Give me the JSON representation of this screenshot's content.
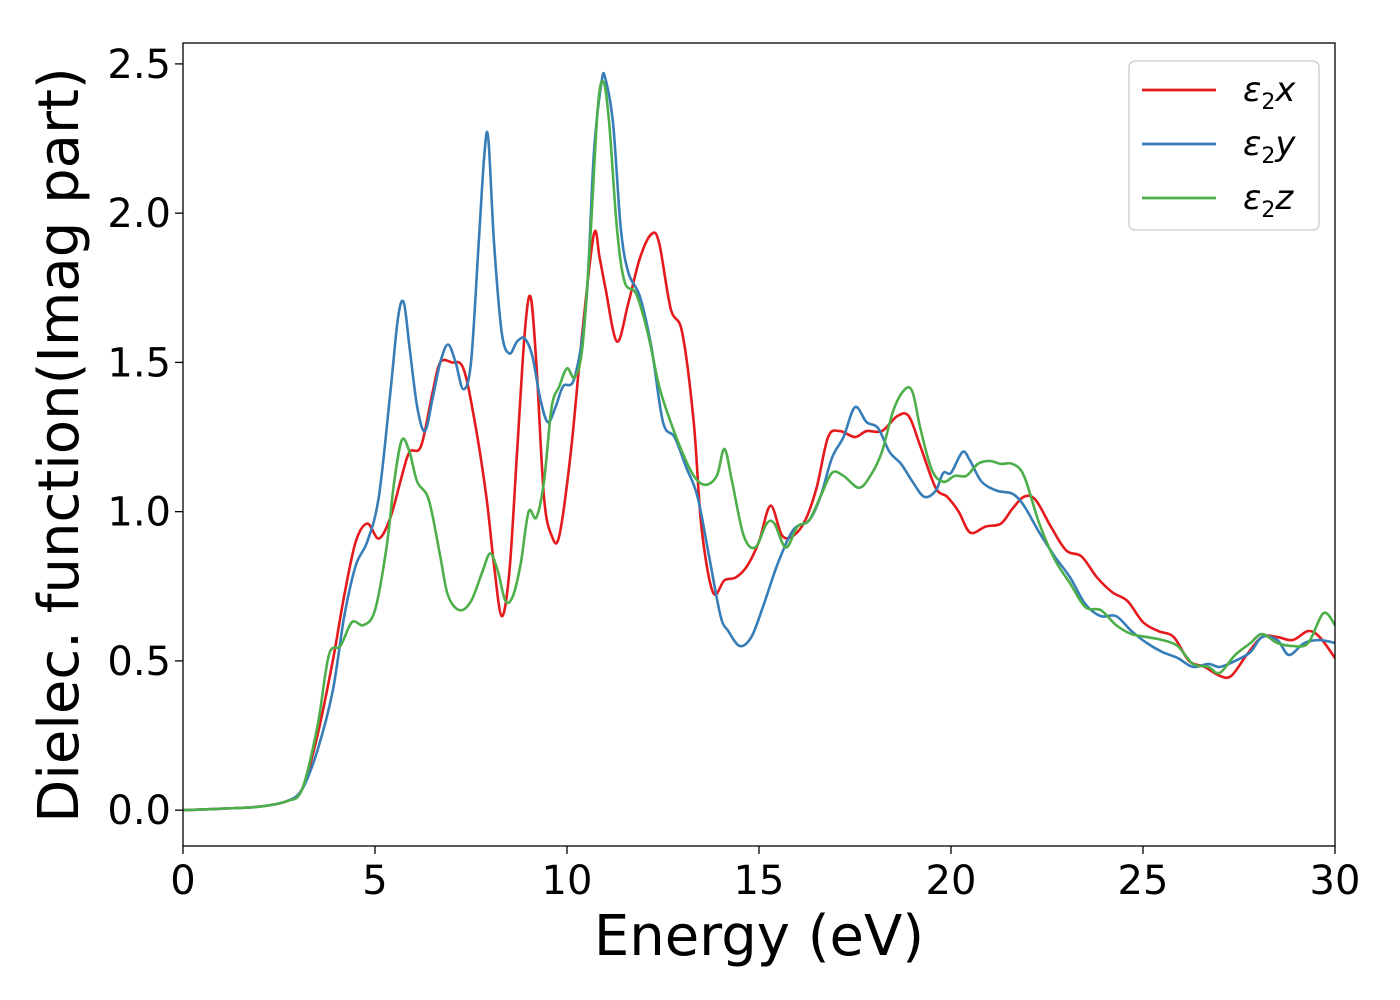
{
  "chart_data": {
    "type": "line",
    "title": "",
    "xlabel": "Energy (eV)",
    "ylabel": "Dielec. function(Imag part)",
    "xlim": [
      0,
      30
    ],
    "ylim": [
      -0.12,
      2.57
    ],
    "xticks": [
      0,
      5,
      10,
      15,
      20,
      25,
      30
    ],
    "yticks": [
      0.0,
      0.5,
      1.0,
      1.5,
      2.0,
      2.5
    ],
    "xtick_labels": [
      "0",
      "5",
      "10",
      "15",
      "20",
      "25",
      "30"
    ],
    "ytick_labels": [
      "0.0",
      "0.5",
      "1.0",
      "1.5",
      "2.0",
      "2.5"
    ],
    "grid": false,
    "legend_position": "top-right",
    "series": [
      {
        "name": "ε2x",
        "legend": {
          "base": "ε",
          "sub": "2",
          "tail": "x"
        },
        "color": "#e41a1c",
        "points": [
          [
            0,
            0
          ],
          [
            1,
            0.005
          ],
          [
            2,
            0.012
          ],
          [
            2.7,
            0.03
          ],
          [
            3.1,
            0.07
          ],
          [
            3.5,
            0.25
          ],
          [
            3.9,
            0.5
          ],
          [
            4.2,
            0.72
          ],
          [
            4.5,
            0.9
          ],
          [
            4.8,
            0.96
          ],
          [
            5.1,
            0.91
          ],
          [
            5.4,
            0.98
          ],
          [
            5.7,
            1.12
          ],
          [
            5.9,
            1.2
          ],
          [
            6.2,
            1.22
          ],
          [
            6.5,
            1.4
          ],
          [
            6.7,
            1.5
          ],
          [
            7.0,
            1.5
          ],
          [
            7.3,
            1.48
          ],
          [
            7.6,
            1.3
          ],
          [
            7.9,
            1.05
          ],
          [
            8.1,
            0.82
          ],
          [
            8.3,
            0.65
          ],
          [
            8.5,
            0.8
          ],
          [
            8.7,
            1.2
          ],
          [
            8.9,
            1.6
          ],
          [
            9.05,
            1.72
          ],
          [
            9.2,
            1.5
          ],
          [
            9.4,
            1.05
          ],
          [
            9.6,
            0.92
          ],
          [
            9.8,
            0.92
          ],
          [
            10.1,
            1.2
          ],
          [
            10.4,
            1.6
          ],
          [
            10.7,
            1.93
          ],
          [
            10.85,
            1.85
          ],
          [
            11.0,
            1.75
          ],
          [
            11.3,
            1.57
          ],
          [
            11.6,
            1.7
          ],
          [
            11.9,
            1.85
          ],
          [
            12.2,
            1.93
          ],
          [
            12.4,
            1.9
          ],
          [
            12.7,
            1.68
          ],
          [
            13.0,
            1.6
          ],
          [
            13.3,
            1.3
          ],
          [
            13.5,
            0.95
          ],
          [
            13.8,
            0.73
          ],
          [
            14.1,
            0.77
          ],
          [
            14.4,
            0.78
          ],
          [
            14.7,
            0.82
          ],
          [
            15.0,
            0.9
          ],
          [
            15.3,
            1.02
          ],
          [
            15.6,
            0.92
          ],
          [
            15.9,
            0.92
          ],
          [
            16.2,
            0.97
          ],
          [
            16.5,
            1.08
          ],
          [
            16.8,
            1.25
          ],
          [
            17.1,
            1.27
          ],
          [
            17.5,
            1.25
          ],
          [
            17.8,
            1.27
          ],
          [
            18.2,
            1.27
          ],
          [
            18.6,
            1.32
          ],
          [
            18.9,
            1.32
          ],
          [
            19.2,
            1.22
          ],
          [
            19.6,
            1.08
          ],
          [
            19.9,
            1.05
          ],
          [
            20.2,
            1.0
          ],
          [
            20.5,
            0.93
          ],
          [
            20.9,
            0.95
          ],
          [
            21.3,
            0.96
          ],
          [
            21.6,
            1.01
          ],
          [
            21.9,
            1.05
          ],
          [
            22.2,
            1.04
          ],
          [
            22.6,
            0.95
          ],
          [
            23.0,
            0.87
          ],
          [
            23.4,
            0.85
          ],
          [
            23.8,
            0.78
          ],
          [
            24.2,
            0.73
          ],
          [
            24.6,
            0.7
          ],
          [
            25.0,
            0.63
          ],
          [
            25.4,
            0.6
          ],
          [
            25.8,
            0.58
          ],
          [
            26.2,
            0.5
          ],
          [
            26.6,
            0.48
          ],
          [
            27.0,
            0.45
          ],
          [
            27.3,
            0.45
          ],
          [
            27.7,
            0.52
          ],
          [
            28.1,
            0.58
          ],
          [
            28.5,
            0.58
          ],
          [
            28.9,
            0.57
          ],
          [
            29.3,
            0.6
          ],
          [
            29.6,
            0.58
          ],
          [
            30.0,
            0.51
          ]
        ]
      },
      {
        "name": "ε2y",
        "legend": {
          "base": "ε",
          "sub": "2",
          "tail": "y"
        },
        "color": "#377eb8",
        "points": [
          [
            0,
            0
          ],
          [
            1,
            0.005
          ],
          [
            2,
            0.012
          ],
          [
            2.7,
            0.03
          ],
          [
            3.1,
            0.07
          ],
          [
            3.5,
            0.2
          ],
          [
            3.9,
            0.4
          ],
          [
            4.2,
            0.65
          ],
          [
            4.5,
            0.82
          ],
          [
            4.8,
            0.9
          ],
          [
            5.1,
            1.05
          ],
          [
            5.4,
            1.4
          ],
          [
            5.6,
            1.65
          ],
          [
            5.75,
            1.7
          ],
          [
            5.9,
            1.55
          ],
          [
            6.1,
            1.35
          ],
          [
            6.3,
            1.27
          ],
          [
            6.5,
            1.38
          ],
          [
            6.7,
            1.5
          ],
          [
            6.9,
            1.56
          ],
          [
            7.1,
            1.5
          ],
          [
            7.3,
            1.41
          ],
          [
            7.5,
            1.5
          ],
          [
            7.7,
            1.9
          ],
          [
            7.85,
            2.2
          ],
          [
            7.95,
            2.25
          ],
          [
            8.1,
            1.9
          ],
          [
            8.3,
            1.6
          ],
          [
            8.5,
            1.53
          ],
          [
            8.7,
            1.57
          ],
          [
            8.9,
            1.58
          ],
          [
            9.1,
            1.52
          ],
          [
            9.3,
            1.38
          ],
          [
            9.5,
            1.3
          ],
          [
            9.7,
            1.35
          ],
          [
            9.9,
            1.42
          ],
          [
            10.2,
            1.45
          ],
          [
            10.5,
            1.7
          ],
          [
            10.7,
            2.2
          ],
          [
            10.9,
            2.44
          ],
          [
            11.0,
            2.45
          ],
          [
            11.2,
            2.3
          ],
          [
            11.4,
            1.95
          ],
          [
            11.6,
            1.8
          ],
          [
            11.9,
            1.72
          ],
          [
            12.2,
            1.55
          ],
          [
            12.5,
            1.3
          ],
          [
            12.8,
            1.25
          ],
          [
            13.1,
            1.15
          ],
          [
            13.4,
            1.05
          ],
          [
            13.7,
            0.85
          ],
          [
            14.0,
            0.65
          ],
          [
            14.2,
            0.6
          ],
          [
            14.5,
            0.55
          ],
          [
            14.8,
            0.58
          ],
          [
            15.1,
            0.68
          ],
          [
            15.5,
            0.83
          ],
          [
            15.9,
            0.94
          ],
          [
            16.3,
            0.97
          ],
          [
            16.6,
            1.05
          ],
          [
            16.9,
            1.18
          ],
          [
            17.2,
            1.25
          ],
          [
            17.5,
            1.35
          ],
          [
            17.8,
            1.3
          ],
          [
            18.1,
            1.28
          ],
          [
            18.4,
            1.2
          ],
          [
            18.7,
            1.16
          ],
          [
            19.0,
            1.1
          ],
          [
            19.3,
            1.05
          ],
          [
            19.6,
            1.07
          ],
          [
            19.8,
            1.13
          ],
          [
            20.0,
            1.13
          ],
          [
            20.3,
            1.2
          ],
          [
            20.5,
            1.17
          ],
          [
            20.8,
            1.1
          ],
          [
            21.2,
            1.07
          ],
          [
            21.6,
            1.06
          ],
          [
            21.9,
            1.02
          ],
          [
            22.3,
            0.93
          ],
          [
            22.7,
            0.85
          ],
          [
            23.1,
            0.78
          ],
          [
            23.5,
            0.69
          ],
          [
            23.9,
            0.65
          ],
          [
            24.3,
            0.65
          ],
          [
            24.7,
            0.6
          ],
          [
            25.1,
            0.56
          ],
          [
            25.5,
            0.53
          ],
          [
            25.9,
            0.51
          ],
          [
            26.3,
            0.48
          ],
          [
            26.7,
            0.49
          ],
          [
            27.0,
            0.48
          ],
          [
            27.4,
            0.5
          ],
          [
            27.8,
            0.53
          ],
          [
            28.1,
            0.58
          ],
          [
            28.5,
            0.57
          ],
          [
            28.8,
            0.52
          ],
          [
            29.2,
            0.56
          ],
          [
            29.6,
            0.57
          ],
          [
            30.0,
            0.56
          ]
        ]
      },
      {
        "name": "ε2z",
        "legend": {
          "base": "ε",
          "sub": "2",
          "tail": "z"
        },
        "color": "#4daf4a",
        "points": [
          [
            0,
            0
          ],
          [
            1,
            0.005
          ],
          [
            2,
            0.012
          ],
          [
            2.7,
            0.03
          ],
          [
            3.1,
            0.07
          ],
          [
            3.5,
            0.28
          ],
          [
            3.8,
            0.52
          ],
          [
            4.1,
            0.55
          ],
          [
            4.4,
            0.63
          ],
          [
            4.7,
            0.62
          ],
          [
            5.0,
            0.67
          ],
          [
            5.3,
            0.88
          ],
          [
            5.5,
            1.1
          ],
          [
            5.7,
            1.24
          ],
          [
            5.9,
            1.2
          ],
          [
            6.1,
            1.1
          ],
          [
            6.4,
            1.04
          ],
          [
            6.7,
            0.85
          ],
          [
            6.9,
            0.72
          ],
          [
            7.2,
            0.67
          ],
          [
            7.5,
            0.7
          ],
          [
            7.8,
            0.8
          ],
          [
            8.0,
            0.86
          ],
          [
            8.2,
            0.8
          ],
          [
            8.4,
            0.7
          ],
          [
            8.6,
            0.72
          ],
          [
            8.8,
            0.83
          ],
          [
            9.0,
            1.0
          ],
          [
            9.2,
            0.98
          ],
          [
            9.4,
            1.1
          ],
          [
            9.6,
            1.35
          ],
          [
            9.8,
            1.42
          ],
          [
            10.0,
            1.48
          ],
          [
            10.2,
            1.45
          ],
          [
            10.4,
            1.55
          ],
          [
            10.6,
            1.9
          ],
          [
            10.8,
            2.35
          ],
          [
            10.95,
            2.44
          ],
          [
            11.1,
            2.3
          ],
          [
            11.3,
            1.95
          ],
          [
            11.5,
            1.77
          ],
          [
            11.8,
            1.73
          ],
          [
            12.1,
            1.6
          ],
          [
            12.4,
            1.42
          ],
          [
            12.7,
            1.3
          ],
          [
            13.0,
            1.2
          ],
          [
            13.3,
            1.12
          ],
          [
            13.6,
            1.09
          ],
          [
            13.9,
            1.12
          ],
          [
            14.1,
            1.21
          ],
          [
            14.3,
            1.1
          ],
          [
            14.6,
            0.92
          ],
          [
            14.9,
            0.88
          ],
          [
            15.2,
            0.96
          ],
          [
            15.4,
            0.96
          ],
          [
            15.7,
            0.88
          ],
          [
            16.0,
            0.95
          ],
          [
            16.3,
            0.97
          ],
          [
            16.6,
            1.05
          ],
          [
            16.9,
            1.13
          ],
          [
            17.2,
            1.12
          ],
          [
            17.6,
            1.08
          ],
          [
            17.9,
            1.12
          ],
          [
            18.2,
            1.2
          ],
          [
            18.5,
            1.34
          ],
          [
            18.8,
            1.41
          ],
          [
            19.0,
            1.4
          ],
          [
            19.2,
            1.28
          ],
          [
            19.5,
            1.14
          ],
          [
            19.8,
            1.1
          ],
          [
            20.1,
            1.12
          ],
          [
            20.4,
            1.12
          ],
          [
            20.7,
            1.16
          ],
          [
            21.0,
            1.17
          ],
          [
            21.3,
            1.16
          ],
          [
            21.6,
            1.16
          ],
          [
            21.9,
            1.12
          ],
          [
            22.3,
            0.96
          ],
          [
            22.7,
            0.84
          ],
          [
            23.1,
            0.76
          ],
          [
            23.5,
            0.68
          ],
          [
            23.9,
            0.67
          ],
          [
            24.3,
            0.62
          ],
          [
            24.7,
            0.59
          ],
          [
            25.1,
            0.58
          ],
          [
            25.5,
            0.57
          ],
          [
            25.9,
            0.55
          ],
          [
            26.3,
            0.49
          ],
          [
            26.7,
            0.48
          ],
          [
            27.0,
            0.46
          ],
          [
            27.4,
            0.52
          ],
          [
            27.8,
            0.56
          ],
          [
            28.1,
            0.59
          ],
          [
            28.5,
            0.56
          ],
          [
            28.9,
            0.55
          ],
          [
            29.3,
            0.56
          ],
          [
            29.7,
            0.66
          ],
          [
            30.0,
            0.62
          ]
        ]
      }
    ]
  }
}
